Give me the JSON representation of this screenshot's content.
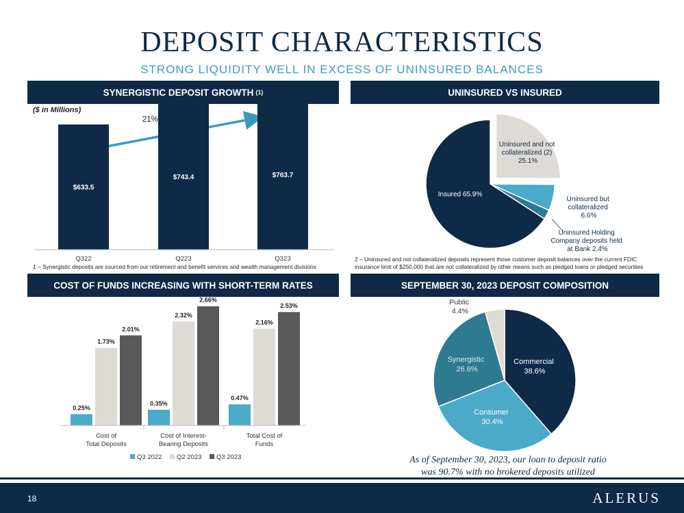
{
  "page": {
    "title": "DEPOSIT CHARACTERISTICS",
    "subtitle": "STRONG LIQUIDITY WELL IN EXCESS OF UNINSURED BALANCES",
    "page_number": "18",
    "logo_text": "ALERUS",
    "brand_colors": {
      "navy": "#0e2a47",
      "teal": "#4aaac8",
      "steel": "#2e7a90",
      "light": "#dedbd6",
      "gray": "#555555"
    }
  },
  "sections": {
    "growth_header": "SYNERGISTIC DEPOSIT GROWTH",
    "growth_header_sup": "(1)",
    "growth_units": "($ in Millions)",
    "growth_annotation": "21% YoY growth",
    "growth_footnote": "1 – Synergistic deposits are sourced from our retirement and benefit services and wealth management divisions",
    "uninsured_header": "UNINSURED VS INSURED",
    "uninsured_footnote_1": "2 – Uninsured and not collateralized deposits represent those customer deposit balances over the current FDIC",
    "uninsured_footnote_2": "insurance limit of $250,000 that are not collateralized by other means such as pledged loans or pledged securities",
    "cost_header": "COST OF FUNDS INCREASING WITH SHORT-TERM RATES",
    "composition_header": "SEPTEMBER 30, 2023 DEPOSIT COMPOSITION",
    "ratio_note_1": "As of September 30, 2023, our loan to deposit ratio",
    "ratio_note_2": "was 90.7% with no brokered deposits utilized"
  },
  "chart_data": [
    {
      "type": "bar",
      "id": "growth",
      "categories": [
        "Q322",
        "Q223",
        "Q323"
      ],
      "values": [
        633.5,
        743.4,
        763.7
      ],
      "labels": [
        "$633.5",
        "$743.4",
        "$763.7"
      ],
      "ylim": [
        0,
        900
      ],
      "color": "#0e2a47"
    },
    {
      "type": "pie",
      "id": "uninsured",
      "slices": [
        {
          "label": "Uninsured and not collateralized (2)",
          "value_label": "25.1%",
          "value": 25.1,
          "color": "#dedbd6",
          "exploded": true
        },
        {
          "label": "Uninsured but collateralized",
          "value_label": "6.6%",
          "value": 6.6,
          "color": "#4aaac8"
        },
        {
          "label": "Uninsured Holding Company deposits held at Bank",
          "value_label": "2.4%",
          "value": 2.4,
          "color": "#2e7a90"
        },
        {
          "label": "Insured",
          "value_label": "65.9%",
          "value": 65.9,
          "color": "#0e2a47"
        }
      ]
    },
    {
      "type": "bar",
      "id": "cost",
      "categories": [
        "Cost of Total Deposits",
        "Cost of Interest-Bearing Deposits",
        "Total Cost of Funds"
      ],
      "category_lines": [
        [
          "Cost of",
          "Total Deposits"
        ],
        [
          "Cost of Interest-",
          "Bearing Deposits"
        ],
        [
          "Total Cost of",
          "Funds"
        ]
      ],
      "series": [
        {
          "name": "Q3 2022",
          "values": [
            0.25,
            0.35,
            0.47
          ],
          "labels": [
            "0.25%",
            "0.35%",
            "0.47%"
          ],
          "color": "#4aaac8"
        },
        {
          "name": "Q2 2023",
          "values": [
            1.73,
            2.32,
            2.16
          ],
          "labels": [
            "1.73%",
            "2.32%",
            "2.16%"
          ],
          "color": "#dedbd6"
        },
        {
          "name": "Q3 2023",
          "values": [
            2.01,
            2.66,
            2.53
          ],
          "labels": [
            "2.01%",
            "2.66%",
            "2.53%"
          ],
          "color": "#595959"
        }
      ],
      "ylim": [
        0,
        2.9
      ],
      "legend": "bottom"
    },
    {
      "type": "pie",
      "id": "composition",
      "slices": [
        {
          "label": "Commercial",
          "value_label": "38.6%",
          "value": 38.6,
          "color": "#0e2a47"
        },
        {
          "label": "Consumer",
          "value_label": "30.4%",
          "value": 30.4,
          "color": "#4aaac8"
        },
        {
          "label": "Synergistic",
          "value_label": "26.6%",
          "value": 26.6,
          "color": "#2e7a90"
        },
        {
          "label": "Public",
          "value_label": "4.4%",
          "value": 4.4,
          "color": "#dedbd6"
        }
      ]
    }
  ]
}
